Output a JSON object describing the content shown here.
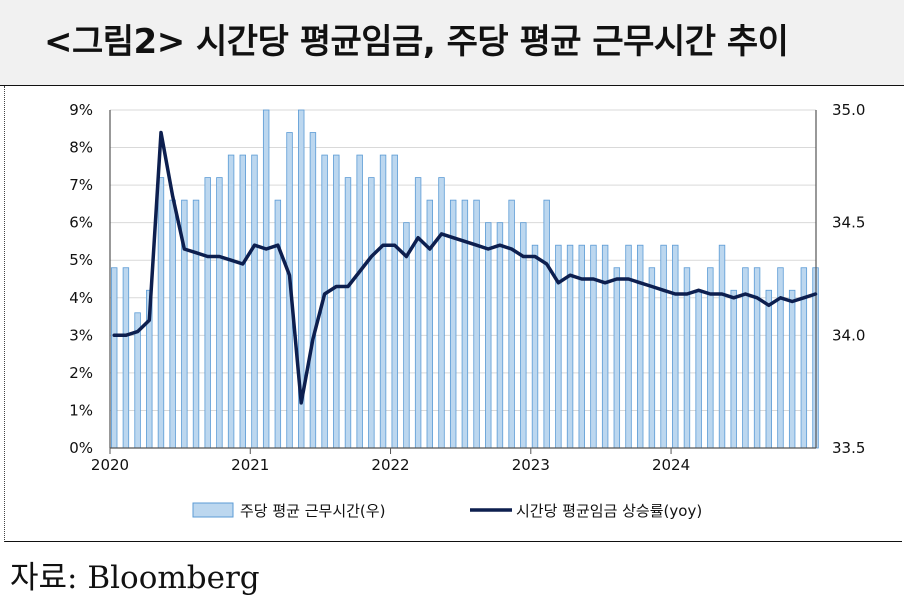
{
  "title": "<그림2> 시간당 평균임금, 주당 평균 근무시간 추이",
  "source": "자료: Bloomberg",
  "chart_data": {
    "type": "bar+line",
    "x_ticks": [
      "2020",
      "2021",
      "2022",
      "2023",
      "2024"
    ],
    "y_left": {
      "min": 0,
      "max": 9,
      "ticks": [
        "0%",
        "1%",
        "2%",
        "3%",
        "4%",
        "5%",
        "6%",
        "7%",
        "8%",
        "9%"
      ]
    },
    "y_right": {
      "min": 33.5,
      "max": 35.0,
      "ticks": [
        "33.5",
        "34.0",
        "34.5",
        "35.0"
      ]
    },
    "legend": {
      "bar": "주당 평균 근무시간(우)",
      "line": "시간당 평균임금 상승률(yoy)"
    },
    "colors": {
      "bar_fill": "#bcd7ef",
      "bar_stroke": "#5b9bd5",
      "line": "#0d1f4f",
      "grid": "#d9d9d9"
    },
    "series": [
      {
        "name": "주당 평균 근무시간(우)",
        "axis": "right",
        "type": "bar",
        "start": "2020-01",
        "values": [
          34.3,
          34.3,
          34.1,
          34.2,
          34.7,
          34.6,
          34.6,
          34.6,
          34.7,
          34.7,
          34.8,
          34.8,
          34.8,
          35.0,
          34.6,
          34.9,
          35.0,
          34.9,
          34.8,
          34.8,
          34.7,
          34.8,
          34.7,
          34.8,
          34.8,
          34.5,
          34.7,
          34.6,
          34.7,
          34.6,
          34.6,
          34.6,
          34.5,
          34.5,
          34.6,
          34.5,
          34.4,
          34.6,
          34.4,
          34.4,
          34.4,
          34.4,
          34.4,
          34.3,
          34.4,
          34.4,
          34.3,
          34.4,
          34.4,
          34.3,
          34.2,
          34.3,
          34.4,
          34.2,
          34.3,
          34.3,
          34.2,
          34.3,
          34.2,
          34.3,
          34.3
        ]
      },
      {
        "name": "시간당 평균임금 상승률(yoy)",
        "axis": "left",
        "type": "line",
        "start": "2020-01",
        "values": [
          3.0,
          3.0,
          3.1,
          3.4,
          8.4,
          6.7,
          5.3,
          5.2,
          5.1,
          5.1,
          5.0,
          4.9,
          5.4,
          5.3,
          5.4,
          4.6,
          1.2,
          2.9,
          4.1,
          4.3,
          4.3,
          4.7,
          5.1,
          5.4,
          5.4,
          5.1,
          5.6,
          5.3,
          5.7,
          5.6,
          5.5,
          5.4,
          5.3,
          5.4,
          5.3,
          5.1,
          5.1,
          4.9,
          4.4,
          4.6,
          4.5,
          4.5,
          4.4,
          4.5,
          4.5,
          4.4,
          4.3,
          4.2,
          4.1,
          4.1,
          4.2,
          4.1,
          4.1,
          4.0,
          4.1,
          4.0,
          3.8,
          4.0,
          3.9,
          4.0,
          4.1
        ]
      }
    ]
  }
}
